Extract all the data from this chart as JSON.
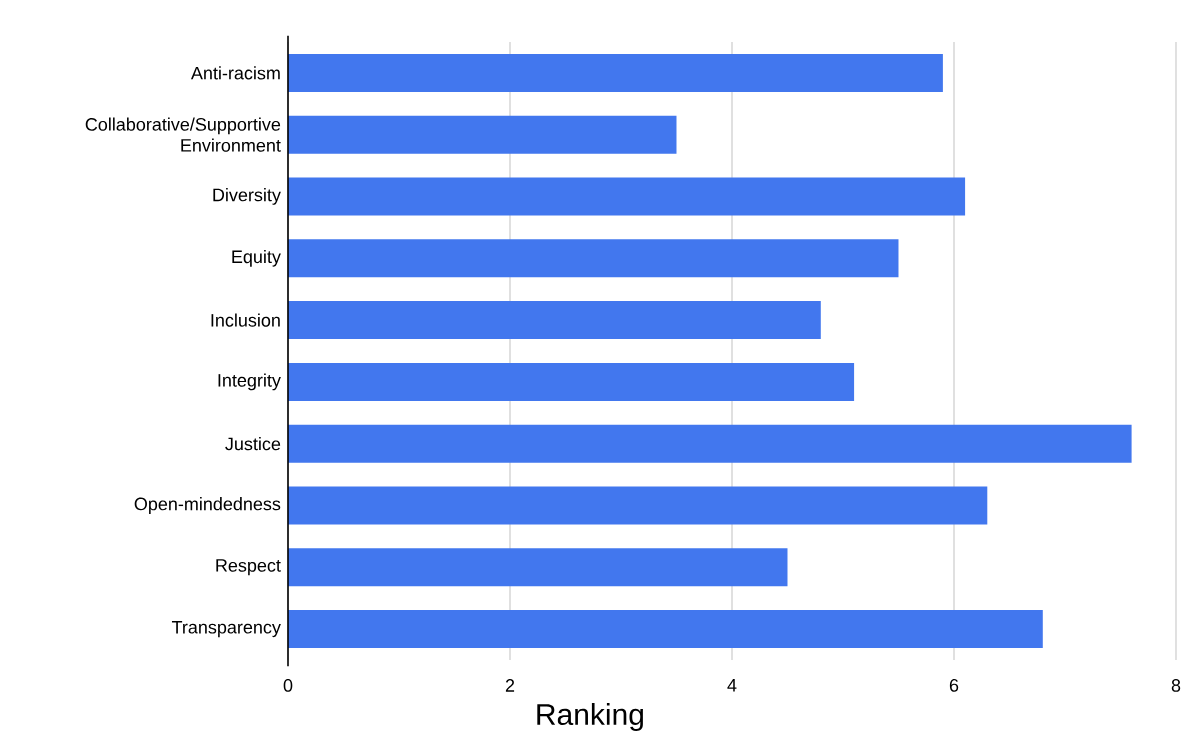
{
  "chart_data": {
    "type": "bar",
    "orientation": "horizontal",
    "xlabel": "Ranking",
    "categories": [
      "Anti-racism",
      "Collaborative/Supportive Environment",
      "Diversity",
      "Equity",
      "Inclusion",
      "Integrity",
      "Justice",
      "Open-mindedness",
      "Respect",
      "Transparency"
    ],
    "values": [
      5.9,
      3.5,
      6.1,
      5.5,
      4.8,
      5.1,
      7.6,
      6.3,
      4.5,
      6.8
    ],
    "color": "#4277ee",
    "xlim": [
      0,
      8
    ],
    "xticks": [
      0,
      2,
      4,
      6,
      8
    ],
    "grid": "x"
  }
}
